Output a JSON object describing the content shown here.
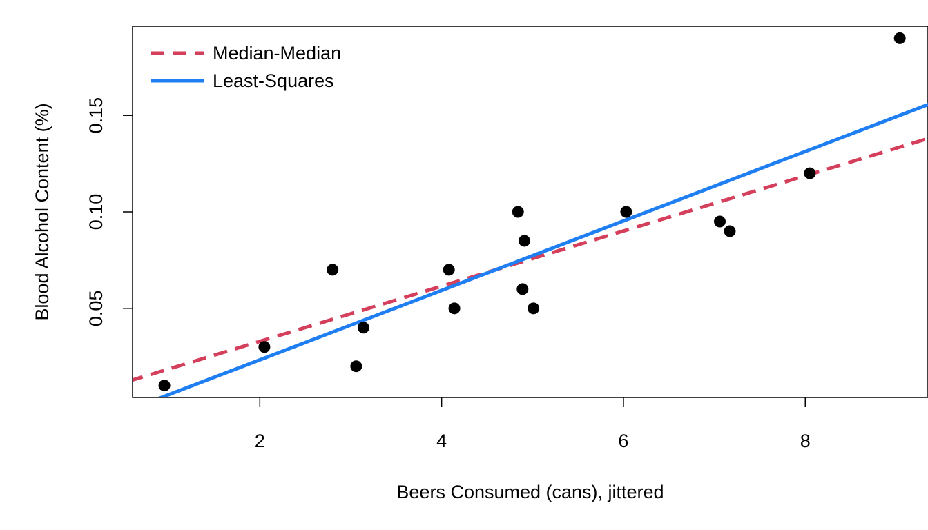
{
  "chart_data": {
    "type": "scatter",
    "xlabel": "Beers Consumed (cans), jittered",
    "ylabel": "Blood Alcohol Content (%)",
    "xlim": [
      0.6,
      9.35
    ],
    "ylim": [
      0.0038,
      0.1962
    ],
    "x_ticks": [
      2,
      4,
      6,
      8
    ],
    "x_tick_labels": [
      "2",
      "4",
      "6",
      "8"
    ],
    "y_ticks": [
      0.05,
      0.1,
      0.15
    ],
    "y_tick_labels": [
      "0.05",
      "0.10",
      "0.15"
    ],
    "grid": false,
    "legend_position": "top-left",
    "points": {
      "x": [
        0.95,
        2.05,
        2.8,
        3.06,
        3.14,
        4.08,
        4.14,
        4.84,
        4.89,
        4.91,
        5.01,
        6.03,
        7.06,
        7.17,
        8.05,
        9.04
      ],
      "y": [
        0.01,
        0.03,
        0.07,
        0.02,
        0.04,
        0.07,
        0.05,
        0.1,
        0.06,
        0.085,
        0.05,
        0.1,
        0.095,
        0.09,
        0.12,
        0.19
      ]
    },
    "series": [
      {
        "name": "Median-Median",
        "kind": "line",
        "style": "dashed",
        "color": "#d43f5c",
        "intercept": 0.0043,
        "slope": 0.0143
      },
      {
        "name": "Least-Squares",
        "kind": "line",
        "style": "solid",
        "color": "#1f7ff2",
        "intercept": -0.0127,
        "slope": 0.018
      }
    ],
    "point_color": "#000000"
  }
}
